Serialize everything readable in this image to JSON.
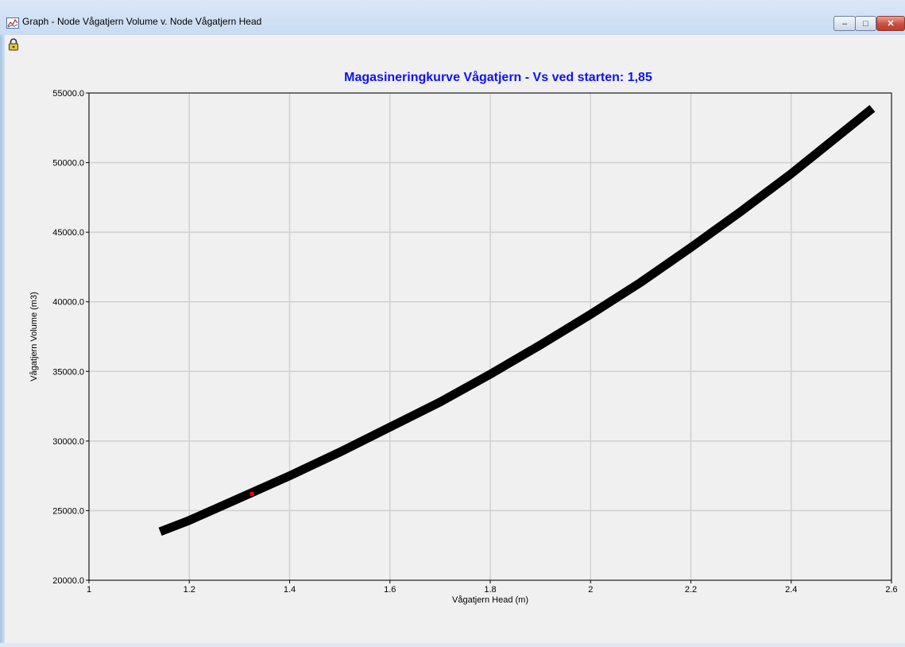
{
  "window": {
    "title": "Graph - Node Vågatjern Volume v. Node Vågatjern Head",
    "minimize_label": "–",
    "maximize_label": "□",
    "close_label": "✕"
  },
  "toolbar": {
    "lock_icon": "lock-icon"
  },
  "colors": {
    "title": "#1010ff",
    "curve": "#000000",
    "marker": "#ff0000",
    "grid": "#d0d0d0"
  },
  "chart_data": {
    "type": "line",
    "title": "Magasineringkurve Vågatjern - Vs ved starten: 1,85",
    "xlabel": "Vågatjern Head (m)",
    "ylabel": "Vågatjern Volume (m3)",
    "xlim": [
      1,
      2.6
    ],
    "ylim": [
      20000,
      55000
    ],
    "xticks": [
      "1",
      "1.2",
      "1.4",
      "1.6",
      "1.8",
      "2",
      "2.2",
      "2.4",
      "2.6"
    ],
    "xtick_values": [
      1,
      1.2,
      1.4,
      1.6,
      1.8,
      2,
      2.2,
      2.4,
      2.6
    ],
    "yticks": [
      "20000.0",
      "25000.0",
      "30000.0",
      "35000.0",
      "40000.0",
      "45000.0",
      "50000.0",
      "55000.0"
    ],
    "ytick_values": [
      20000,
      25000,
      30000,
      35000,
      40000,
      45000,
      50000,
      55000
    ],
    "grid": true,
    "series": [
      {
        "x": [
          1.15,
          1.2,
          1.3,
          1.4,
          1.5,
          1.6,
          1.7,
          1.8,
          1.9,
          2.0,
          2.1,
          2.2,
          2.3,
          2.4,
          2.5,
          2.555
        ],
        "y": [
          23600,
          24300,
          25900,
          27500,
          29200,
          31000,
          32800,
          34800,
          36900,
          39100,
          41400,
          43900,
          46500,
          49200,
          52100,
          53700
        ]
      }
    ],
    "marker": {
      "x": 1.325,
      "y": 26200
    }
  }
}
